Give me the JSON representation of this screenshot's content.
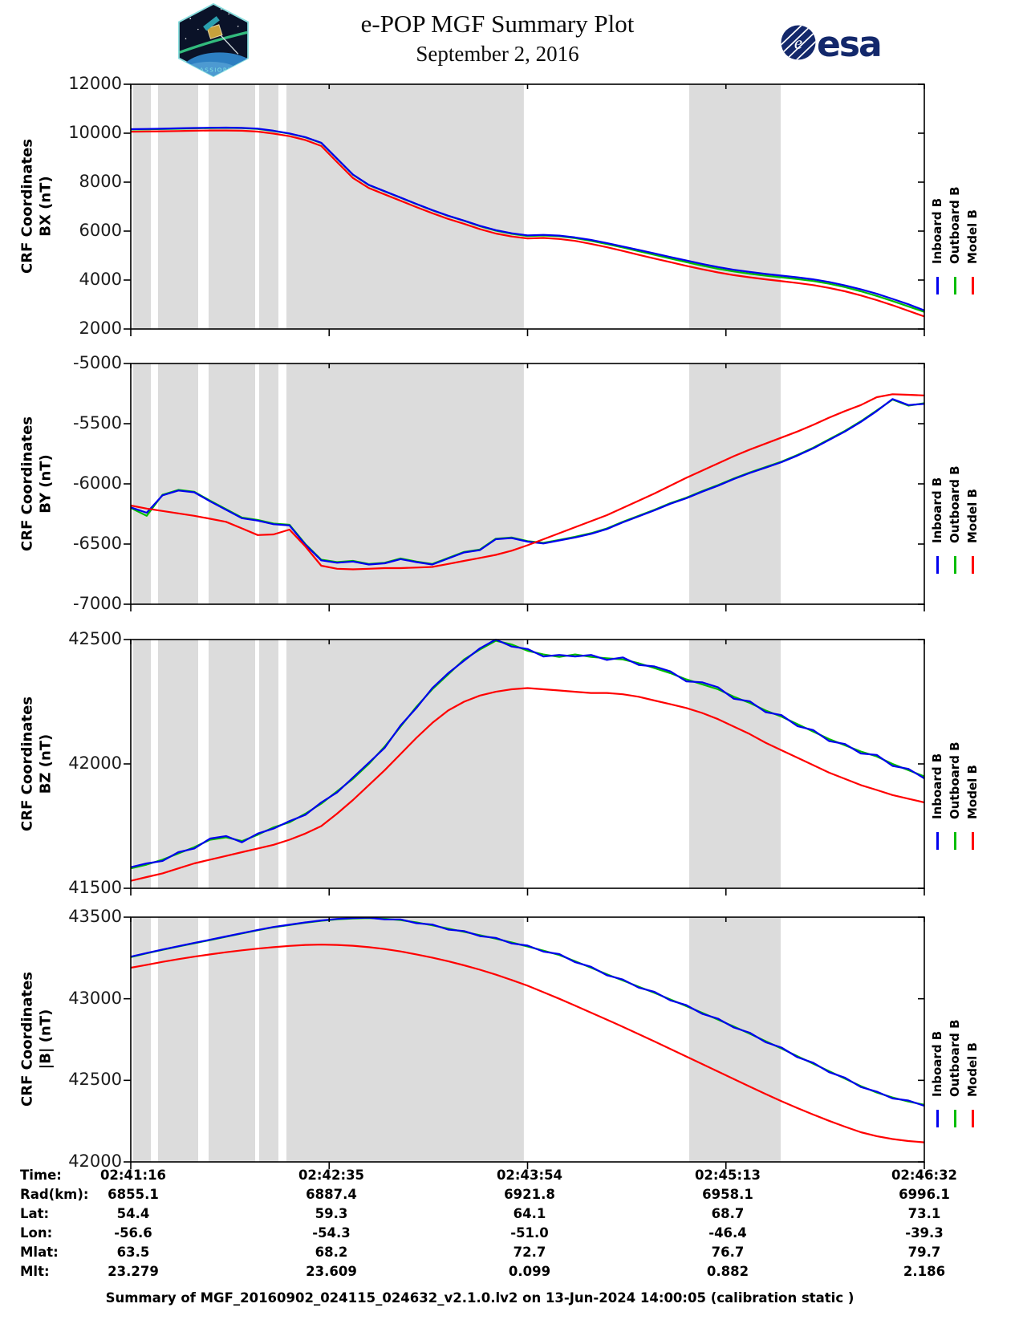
{
  "header": {
    "title": "e-POP MGF Summary Plot",
    "subtitle": "September 2, 2016",
    "patch_label": "CASSIOPE",
    "esa_label": "esa"
  },
  "legend": {
    "items": [
      {
        "label": "Inboard B",
        "color": "#0000ee"
      },
      {
        "label": "Outboard B",
        "color": "#00bd00"
      },
      {
        "label": "Model B",
        "color": "#ff0000"
      }
    ]
  },
  "table": {
    "rows": [
      {
        "label": "Time:",
        "values": [
          "02:41:16",
          "02:42:35",
          "02:43:54",
          "02:45:13",
          "02:46:32"
        ]
      },
      {
        "label": "Rad(km):",
        "values": [
          "6855.1",
          "6887.4",
          "6921.8",
          "6958.1",
          "6996.1"
        ]
      },
      {
        "label": "Lat:",
        "values": [
          "54.4",
          "59.3",
          "64.1",
          "68.7",
          "73.1"
        ]
      },
      {
        "label": "Lon:",
        "values": [
          "-56.6",
          "-54.3",
          "-51.0",
          "-46.4",
          "-39.3"
        ]
      },
      {
        "label": "Mlat:",
        "values": [
          "63.5",
          "68.2",
          "72.7",
          "76.7",
          "79.7"
        ]
      },
      {
        "label": "Mlt:",
        "values": [
          "23.279",
          "23.609",
          "0.099",
          "0.882",
          "2.186"
        ]
      }
    ]
  },
  "footer": {
    "summary": "Summary of MGF_20160902_024115_024632_v2.1.0.lv2 on 13-Jun-2024 14:00:05 (calibration static )"
  },
  "chart_data": {
    "type": "line",
    "band_color": "#dcdcdc",
    "x_step": 0.02,
    "x_ticks": {
      "fracs": [
        0,
        0.25,
        0.5,
        0.75,
        1
      ],
      "labels": [
        "02:41:16",
        "02:42:35",
        "02:43:54",
        "02:45:13",
        "02:46:32"
      ]
    },
    "bands": [
      [
        0.003,
        0.0253
      ],
      [
        0.0344,
        0.085
      ],
      [
        0.0981,
        0.1567
      ],
      [
        0.1618,
        0.1861
      ],
      [
        0.1962,
        0.4954
      ],
      [
        0.7037,
        0.819
      ]
    ],
    "panels": [
      {
        "name": "BX",
        "ylabel1": "CRF Coordinates",
        "ylabel2": "BX (nT)",
        "ylim": [
          2000,
          12000
        ],
        "yticks": [
          12000,
          10000,
          8000,
          6000,
          4000,
          2000
        ],
        "series": [
          {
            "name": "Outboard B",
            "color": "#00bd00",
            "values": [
              10150,
              10160,
              10170,
              10185,
              10200,
              10210,
              10215,
              10205,
              10175,
              10090,
              9980,
              9830,
              9600,
              8950,
              8300,
              7880,
              7620,
              7360,
              7100,
              6850,
              6620,
              6420,
              6200,
              6020,
              5890,
              5800,
              5820,
              5790,
              5710,
              5600,
              5470,
              5330,
              5180,
              5030,
              4880,
              4730,
              4590,
              4460,
              4350,
              4260,
              4180,
              4110,
              4040,
              3960,
              3850,
              3710,
              3540,
              3350,
              3140,
              2920,
              2700
            ]
          },
          {
            "name": "Inboard B",
            "color": "#0000ee",
            "values": [
              10165,
              10175,
              10185,
              10200,
              10213,
              10222,
              10228,
              10218,
              10188,
              10100,
              9990,
              9840,
              9610,
              8960,
              8310,
              7890,
              7630,
              7370,
              7110,
              6860,
              6630,
              6430,
              6215,
              6040,
              5910,
              5825,
              5845,
              5815,
              5740,
              5640,
              5510,
              5370,
              5230,
              5090,
              4940,
              4800,
              4660,
              4530,
              4420,
              4330,
              4250,
              4180,
              4110,
              4030,
              3920,
              3780,
              3620,
              3440,
              3230,
              3010,
              2760
            ]
          },
          {
            "name": "Model B",
            "color": "#ff0000",
            "values": [
              10060,
              10070,
              10080,
              10090,
              10100,
              10110,
              10112,
              10100,
              10065,
              9985,
              9880,
              9720,
              9480,
              8820,
              8170,
              7760,
              7500,
              7240,
              6980,
              6730,
              6500,
              6300,
              6080,
              5900,
              5780,
              5700,
              5720,
              5680,
              5600,
              5480,
              5340,
              5190,
              5030,
              4880,
              4730,
              4580,
              4440,
              4310,
              4200,
              4110,
              4030,
              3955,
              3880,
              3795,
              3680,
              3540,
              3370,
              3180,
              2970,
              2740,
              2510
            ]
          }
        ]
      },
      {
        "name": "BY",
        "ylabel1": "CRF Coordinates",
        "ylabel2": "BY (nT)",
        "ylim": [
          -7000,
          -5000
        ],
        "yticks": [
          -5000,
          -5500,
          -6000,
          -6500,
          -7000
        ],
        "series": [
          {
            "name": "Outboard B",
            "color": "#00bd00",
            "values": [
              -6200,
              -6265,
              -6090,
              -6050,
              -6065,
              -6140,
              -6210,
              -6280,
              -6300,
              -6330,
              -6340,
              -6500,
              -6630,
              -6650,
              -6640,
              -6665,
              -6655,
              -6620,
              -6645,
              -6665,
              -6615,
              -6565,
              -6545,
              -6455,
              -6445,
              -6475,
              -6490,
              -6465,
              -6440,
              -6410,
              -6370,
              -6315,
              -6265,
              -6215,
              -6160,
              -6115,
              -6060,
              -6010,
              -5955,
              -5905,
              -5860,
              -5815,
              -5760,
              -5700,
              -5630,
              -5560,
              -5480,
              -5390,
              -5300,
              -5350,
              -5330
            ]
          },
          {
            "name": "Inboard B",
            "color": "#0000ee",
            "values": [
              -6195,
              -6240,
              -6095,
              -6055,
              -6070,
              -6145,
              -6215,
              -6285,
              -6305,
              -6335,
              -6345,
              -6505,
              -6635,
              -6655,
              -6645,
              -6670,
              -6660,
              -6625,
              -6650,
              -6670,
              -6620,
              -6570,
              -6550,
              -6460,
              -6450,
              -6480,
              -6495,
              -6470,
              -6445,
              -6415,
              -6375,
              -6320,
              -6270,
              -6220,
              -6165,
              -6120,
              -6065,
              -6015,
              -5960,
              -5910,
              -5865,
              -5820,
              -5765,
              -5705,
              -5635,
              -5565,
              -5485,
              -5395,
              -5295,
              -5345,
              -5335
            ]
          },
          {
            "name": "Model B",
            "color": "#ff0000",
            "values": [
              -6180,
              -6205,
              -6225,
              -6245,
              -6265,
              -6290,
              -6315,
              -6370,
              -6425,
              -6420,
              -6380,
              -6520,
              -6680,
              -6705,
              -6710,
              -6705,
              -6700,
              -6700,
              -6695,
              -6690,
              -6665,
              -6640,
              -6615,
              -6590,
              -6555,
              -6510,
              -6460,
              -6410,
              -6360,
              -6310,
              -6260,
              -6200,
              -6140,
              -6080,
              -6015,
              -5950,
              -5890,
              -5830,
              -5770,
              -5715,
              -5665,
              -5615,
              -5565,
              -5510,
              -5450,
              -5395,
              -5345,
              -5280,
              -5255,
              -5260,
              -5265
            ]
          }
        ]
      },
      {
        "name": "BZ",
        "ylabel1": "CRF Coordinates",
        "ylabel2": "BZ (nT)",
        "ylim": [
          41500,
          42500
        ],
        "yticks": [
          42500,
          42000,
          41500
        ],
        "series": [
          {
            "name": "Outboard B",
            "color": "#00bd00",
            "values": [
              41580,
              41595,
              41615,
              41640,
              41665,
              41695,
              41705,
              41690,
              41715,
              41745,
              41765,
              41800,
              41840,
              41890,
              41940,
              42000,
              42070,
              42150,
              42230,
              42300,
              42360,
              42420,
              42460,
              42495,
              42480,
              42455,
              42440,
              42430,
              42440,
              42430,
              42425,
              42420,
              42405,
              42385,
              42365,
              42340,
              42320,
              42300,
              42270,
              42245,
              42215,
              42190,
              42160,
              42130,
              42100,
              42075,
              42050,
              42030,
              42000,
              41975,
              41950
            ]
          },
          {
            "name": "Inboard B",
            "color": "#0000ee",
            "values": [
              41585,
              41600,
              41610,
              41645,
              41660,
              41700,
              41710,
              41685,
              41720,
              41740,
              41770,
              41795,
              41845,
              41885,
              41945,
              42005,
              42065,
              42155,
              42225,
              42305,
              42365,
              42415,
              42465,
              42500,
              42472,
              42462,
              42432,
              42438,
              42432,
              42438,
              42418,
              42428,
              42398,
              42392,
              42372,
              42332,
              42328,
              42308,
              42262,
              42252,
              42208,
              42196,
              42152,
              42136,
              42092,
              42080,
              42042,
              42036,
              41992,
              41980,
              41942
            ]
          },
          {
            "name": "Model B",
            "color": "#ff0000",
            "values": [
              41530,
              41545,
              41560,
              41580,
              41600,
              41615,
              41630,
              41645,
              41660,
              41675,
              41695,
              41720,
              41750,
              41800,
              41855,
              41915,
              41975,
              42040,
              42105,
              42165,
              42215,
              42250,
              42275,
              42290,
              42300,
              42305,
              42300,
              42295,
              42290,
              42285,
              42285,
              42280,
              42270,
              42255,
              42240,
              42225,
              42205,
              42180,
              42150,
              42120,
              42085,
              42055,
              42025,
              41995,
              41965,
              41940,
              41915,
              41895,
              41875,
              41860,
              41845
            ]
          }
        ]
      },
      {
        "name": "|B|",
        "ylabel1": "CRF Coordinates",
        "ylabel2": "|B| (nT)",
        "ylim": [
          42000,
          43500
        ],
        "yticks": [
          43500,
          43000,
          42500,
          42000
        ],
        "series": [
          {
            "name": "Outboard B",
            "color": "#00bd00",
            "values": [
              43255,
              43278,
              43300,
              43320,
              43340,
              43360,
              43380,
              43400,
              43420,
              43438,
              43452,
              43466,
              43478,
              43487,
              43492,
              43494,
              43490,
              43482,
              43468,
              43450,
              43430,
              43410,
              43390,
              43368,
              43345,
              43320,
              43295,
              43268,
              43230,
              43190,
              43150,
              43112,
              43074,
              43036,
              42996,
              42955,
              42914,
              42872,
              42830,
              42786,
              42740,
              42695,
              42648,
              42602,
              42556,
              42510,
              42465,
              42425,
              42395,
              42370,
              42350
            ]
          },
          {
            "name": "Inboard B",
            "color": "#0000ee",
            "values": [
              43258,
              43280,
              43302,
              43322,
              43342,
              43362,
              43382,
              43402,
              43422,
              43440,
              43454,
              43468,
              43480,
              43489,
              43494,
              43497,
              43486,
              43486,
              43463,
              43455,
              43424,
              43415,
              43384,
              43373,
              43339,
              43326,
              43289,
              43274,
              43224,
              43196,
              43144,
              43118,
              43068,
              43042,
              42990,
              42961,
              42908,
              42878,
              42824,
              42792,
              42734,
              42701,
              42642,
              42608,
              42550,
              42516,
              42459,
              42431,
              42389,
              42376,
              42344
            ]
          },
          {
            "name": "Model B",
            "color": "#ff0000",
            "values": [
              43190,
              43208,
              43226,
              43243,
              43258,
              43272,
              43285,
              43297,
              43307,
              43316,
              43324,
              43330,
              43332,
              43330,
              43325,
              43316,
              43305,
              43290,
              43272,
              43252,
              43230,
              43205,
              43178,
              43148,
              43115,
              43080,
              43040,
              43000,
              42958,
              42915,
              42872,
              42828,
              42783,
              42738,
              42692,
              42646,
              42600,
              42554,
              42508,
              42462,
              42416,
              42372,
              42330,
              42290,
              42252,
              42216,
              42182,
              42158,
              42140,
              42128,
              42120
            ]
          }
        ]
      }
    ]
  }
}
